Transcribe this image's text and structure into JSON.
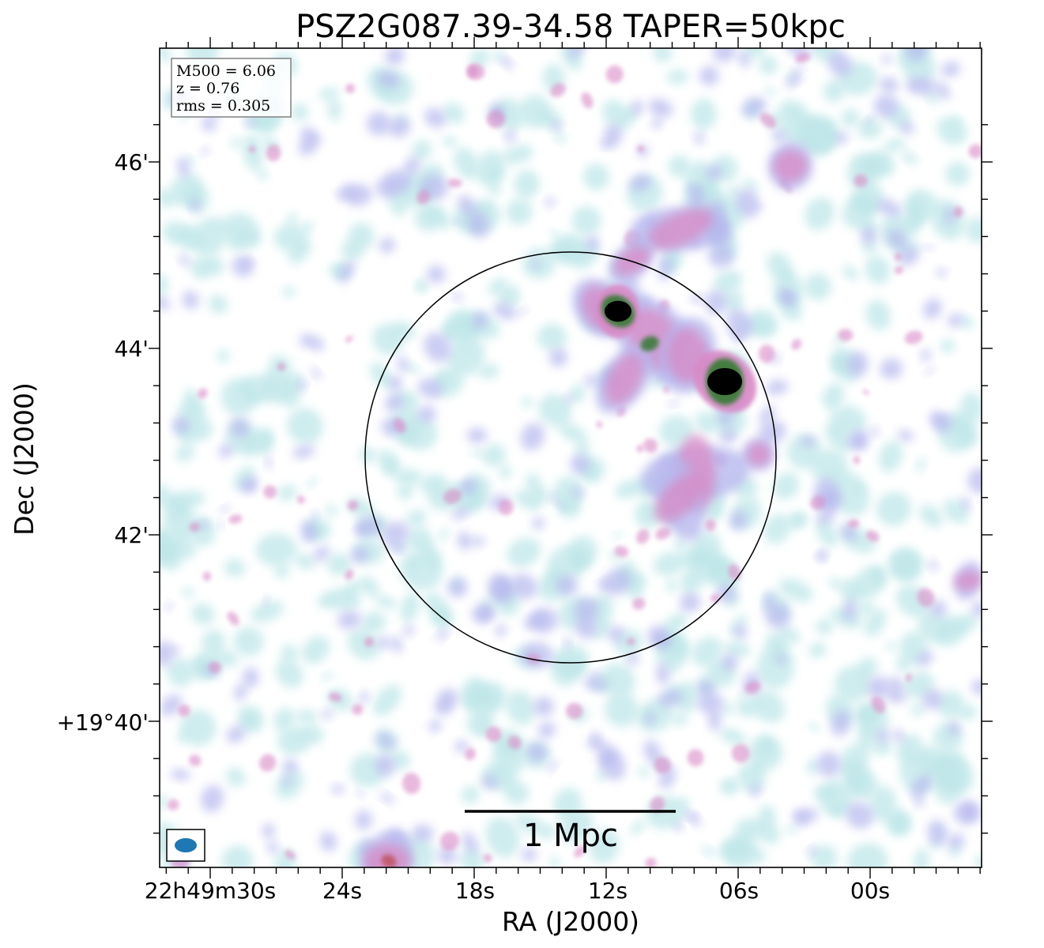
{
  "title": "PSZ2G087.39-34.58 TAPER=50kpc",
  "xlabel": "RA (J2000)",
  "ylabel": "Dec (J2000)",
  "ra_ticks": [
    "22h49m30s",
    "24s",
    "18s",
    "12s",
    "06s",
    "00s"
  ],
  "dec_ticks": [
    "46'",
    "44'",
    "42'",
    "+19°40'"
  ],
  "info_box": {
    "m500": "M500 = 6.06",
    "z": "z = 0.76",
    "rms": "rms = 0.305"
  },
  "scale_bar_label": "1 Mpc",
  "colors": {
    "beam": "#1f77b4",
    "emission_low": "#bfe6e8",
    "emission_mid": "#b7b8ee",
    "emission_high": "#d88ac6",
    "source_core": "#000000",
    "source_ring": "#3c7a3a"
  }
}
